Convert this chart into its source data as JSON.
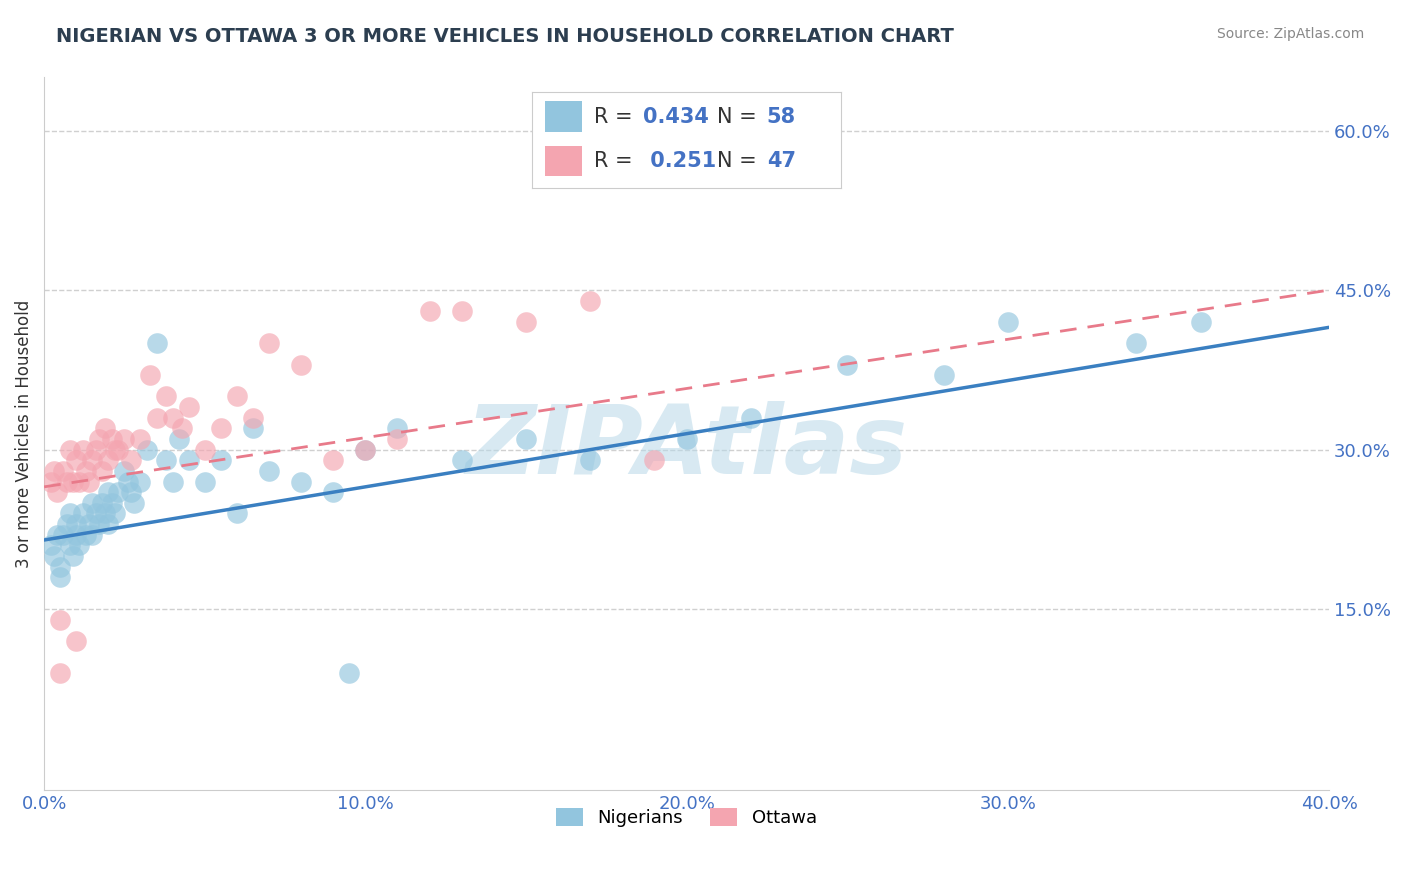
{
  "title": "NIGERIAN VS OTTAWA 3 OR MORE VEHICLES IN HOUSEHOLD CORRELATION CHART",
  "source": "Source: ZipAtlas.com",
  "ylabel": "3 or more Vehicles in Household",
  "xlim": [
    0.0,
    0.4
  ],
  "ylim": [
    -0.02,
    0.65
  ],
  "right_yticks": [
    0.15,
    0.3,
    0.45,
    0.6
  ],
  "right_ytick_labels": [
    "15.0%",
    "30.0%",
    "45.0%",
    "60.0%"
  ],
  "xtick_vals": [
    0.0,
    0.1,
    0.2,
    0.3,
    0.4
  ],
  "xtick_labels": [
    "0.0%",
    "10.0%",
    "20.0%",
    "30.0%",
    "40.0%"
  ],
  "blue_R": 0.434,
  "blue_N": 58,
  "pink_R": 0.251,
  "pink_N": 47,
  "blue_color": "#92c5de",
  "pink_color": "#f4a5b0",
  "blue_line_color": "#3a7fc1",
  "pink_line_color": "#e87a8a",
  "watermark": "ZIPAtlas",
  "watermark_color": "#b8d8e8",
  "grid_color": "#d0d0d0",
  "background_color": "#ffffff",
  "text_color_dark": "#333333",
  "text_color_blue": "#4472c4",
  "blue_scatter_x": [
    0.002,
    0.003,
    0.004,
    0.005,
    0.005,
    0.006,
    0.007,
    0.008,
    0.008,
    0.009,
    0.01,
    0.01,
    0.011,
    0.012,
    0.013,
    0.014,
    0.015,
    0.015,
    0.016,
    0.017,
    0.018,
    0.019,
    0.02,
    0.02,
    0.021,
    0.022,
    0.023,
    0.025,
    0.026,
    0.027,
    0.028,
    0.03,
    0.032,
    0.035,
    0.038,
    0.04,
    0.042,
    0.045,
    0.05,
    0.055,
    0.06,
    0.065,
    0.07,
    0.08,
    0.09,
    0.1,
    0.11,
    0.13,
    0.15,
    0.17,
    0.2,
    0.22,
    0.25,
    0.28,
    0.3,
    0.34,
    0.36,
    0.095
  ],
  "blue_scatter_y": [
    0.21,
    0.2,
    0.22,
    0.19,
    0.18,
    0.22,
    0.23,
    0.21,
    0.24,
    0.2,
    0.22,
    0.23,
    0.21,
    0.24,
    0.22,
    0.23,
    0.25,
    0.22,
    0.24,
    0.23,
    0.25,
    0.24,
    0.26,
    0.23,
    0.25,
    0.24,
    0.26,
    0.28,
    0.27,
    0.26,
    0.25,
    0.27,
    0.3,
    0.4,
    0.29,
    0.27,
    0.31,
    0.29,
    0.27,
    0.29,
    0.24,
    0.32,
    0.28,
    0.27,
    0.26,
    0.3,
    0.32,
    0.29,
    0.31,
    0.29,
    0.31,
    0.33,
    0.38,
    0.37,
    0.42,
    0.4,
    0.42,
    0.09
  ],
  "pink_scatter_x": [
    0.002,
    0.003,
    0.004,
    0.005,
    0.006,
    0.007,
    0.008,
    0.009,
    0.01,
    0.011,
    0.012,
    0.013,
    0.014,
    0.015,
    0.016,
    0.017,
    0.018,
    0.019,
    0.02,
    0.021,
    0.022,
    0.023,
    0.025,
    0.027,
    0.03,
    0.033,
    0.035,
    0.038,
    0.04,
    0.043,
    0.045,
    0.05,
    0.055,
    0.06,
    0.065,
    0.07,
    0.08,
    0.09,
    0.1,
    0.11,
    0.12,
    0.13,
    0.15,
    0.17,
    0.19,
    0.005,
    0.01
  ],
  "pink_scatter_y": [
    0.27,
    0.28,
    0.26,
    0.14,
    0.28,
    0.27,
    0.3,
    0.27,
    0.29,
    0.27,
    0.3,
    0.28,
    0.27,
    0.29,
    0.3,
    0.31,
    0.28,
    0.32,
    0.29,
    0.31,
    0.3,
    0.3,
    0.31,
    0.29,
    0.31,
    0.37,
    0.33,
    0.35,
    0.33,
    0.32,
    0.34,
    0.3,
    0.32,
    0.35,
    0.33,
    0.4,
    0.38,
    0.29,
    0.3,
    0.31,
    0.43,
    0.43,
    0.42,
    0.44,
    0.29,
    0.09,
    0.12
  ],
  "blue_line_x0": 0.0,
  "blue_line_x1": 0.4,
  "blue_line_y0": 0.215,
  "blue_line_y1": 0.415,
  "pink_line_x0": 0.0,
  "pink_line_x1": 0.4,
  "pink_line_y0": 0.265,
  "pink_line_y1": 0.45
}
